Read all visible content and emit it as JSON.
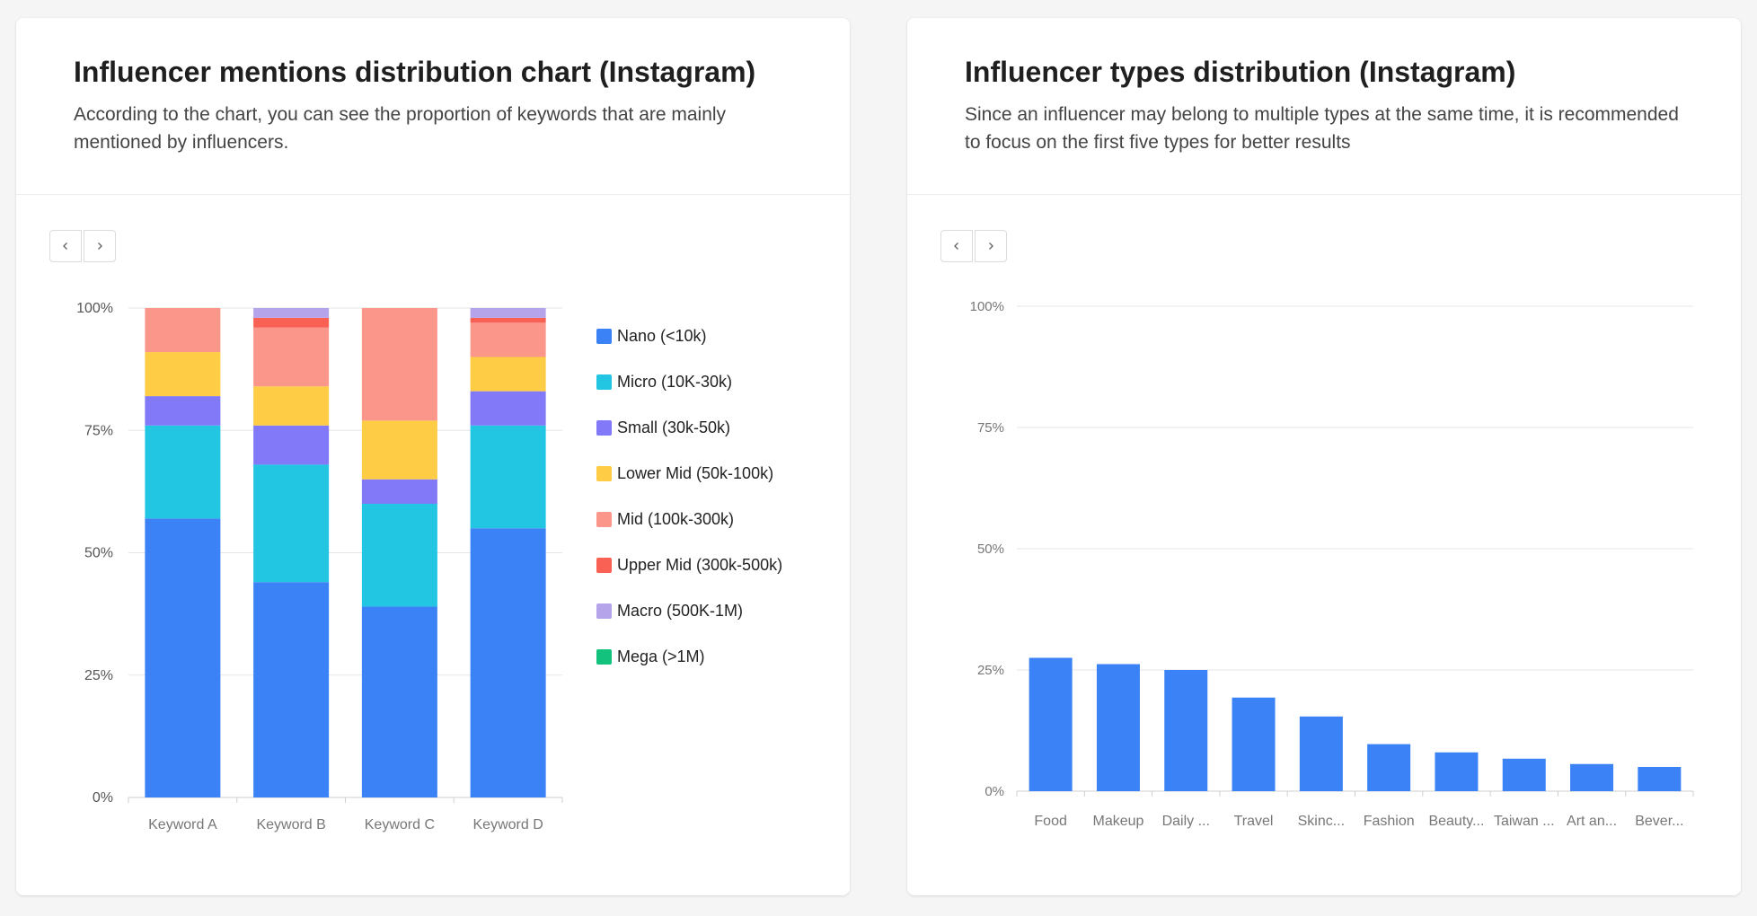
{
  "left": {
    "title": "Influencer mentions distribution chart (Instagram)",
    "description": "According to the chart, you can see the proportion of keywords that are mainly mentioned by influencers."
  },
  "right": {
    "title": "Influencer types distribution (Instagram)",
    "description": "Since an influencer may belong to multiple types at the same time, it is recommended to focus on the first five types for better results"
  },
  "icons": {
    "prev": "chevron-left-icon",
    "next": "chevron-right-icon"
  },
  "chart_data": [
    {
      "type": "bar",
      "stacked": true,
      "categories": [
        "Keyword A",
        "Keyword B",
        "Keyword C",
        "Keyword D"
      ],
      "ylim": [
        0,
        100
      ],
      "yticks": [
        "0%",
        "25%",
        "50%",
        "75%",
        "100%"
      ],
      "grid": true,
      "legend_position": "right",
      "series": [
        {
          "name": "Nano (<10k)",
          "color": "#3b82f6",
          "values": [
            57,
            44,
            39,
            55
          ]
        },
        {
          "name": "Micro (10K-30k)",
          "color": "#22c5e2",
          "values": [
            19,
            24,
            21,
            21
          ]
        },
        {
          "name": "Small (30k-50k)",
          "color": "#8179f7",
          "values": [
            6,
            8,
            5,
            7
          ]
        },
        {
          "name": "Lower Mid (50k-100k)",
          "color": "#ffcc46",
          "values": [
            9,
            8,
            12,
            7
          ]
        },
        {
          "name": "Mid (100k-300k)",
          "color": "#fb968b",
          "values": [
            9,
            12,
            23,
            7
          ]
        },
        {
          "name": "Upper Mid (300k-500k)",
          "color": "#fa6155",
          "values": [
            0,
            2,
            0,
            1
          ]
        },
        {
          "name": "Macro (500K-1M)",
          "color": "#b5a4ea",
          "values": [
            0,
            2,
            0,
            2
          ]
        },
        {
          "name": "Mega (>1M)",
          "color": "#13c37d",
          "values": [
            0,
            0,
            0,
            0
          ]
        }
      ]
    },
    {
      "type": "bar",
      "categories": [
        "Food",
        "Makeup",
        "Daily ...",
        "Travel",
        "Skinc...",
        "Fashion",
        "Beauty...",
        "Taiwan ...",
        "Art an...",
        "Bever..."
      ],
      "values": [
        27.5,
        26.2,
        25,
        19.3,
        15.4,
        9.7,
        8,
        6.7,
        5.6,
        5
      ],
      "color": "#3b82f6",
      "ylim": [
        0,
        100
      ],
      "yticks": [
        "0%",
        "25%",
        "50%",
        "75%",
        "100%"
      ],
      "grid": true
    }
  ]
}
